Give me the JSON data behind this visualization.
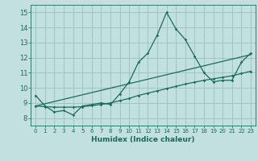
{
  "xlabel": "Humidex (Indice chaleur)",
  "xlim": [
    -0.5,
    23.5
  ],
  "ylim": [
    7.5,
    15.5
  ],
  "yticks": [
    8,
    9,
    10,
    11,
    12,
    13,
    14,
    15
  ],
  "xticks": [
    0,
    1,
    2,
    3,
    4,
    5,
    6,
    7,
    8,
    9,
    10,
    11,
    12,
    13,
    14,
    15,
    16,
    17,
    18,
    19,
    20,
    21,
    22,
    23
  ],
  "background_color": "#c2e0e0",
  "grid_color": "#9bbfbf",
  "line_color": "#1a6b5a",
  "line1_x": [
    0,
    1,
    2,
    3,
    4,
    5,
    6,
    7,
    8,
    9,
    10,
    11,
    12,
    13,
    14,
    15,
    16,
    17,
    18,
    19,
    20,
    21,
    22,
    23
  ],
  "line1_y": [
    9.5,
    8.8,
    8.4,
    8.5,
    8.2,
    8.8,
    8.9,
    9.0,
    8.9,
    9.6,
    10.4,
    11.7,
    12.3,
    13.5,
    15.0,
    13.9,
    13.2,
    12.1,
    11.0,
    10.4,
    10.5,
    10.5,
    11.7,
    12.3
  ],
  "line2_x": [
    0,
    1,
    2,
    3,
    4,
    5,
    6,
    7,
    8,
    9,
    10,
    11,
    12,
    13,
    14,
    15,
    16,
    17,
    18,
    19,
    20,
    21,
    22,
    23
  ],
  "line2_y": [
    8.8,
    8.75,
    8.72,
    8.72,
    8.72,
    8.75,
    8.82,
    8.9,
    9.0,
    9.15,
    9.3,
    9.5,
    9.65,
    9.8,
    9.95,
    10.1,
    10.25,
    10.38,
    10.5,
    10.6,
    10.7,
    10.8,
    10.95,
    11.1
  ],
  "line3_x": [
    0,
    23
  ],
  "line3_y": [
    8.8,
    12.2
  ]
}
